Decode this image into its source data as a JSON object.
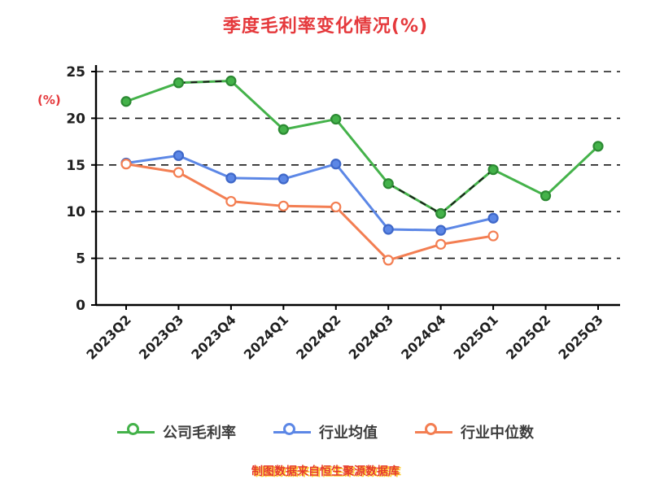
{
  "chart_data": {
    "type": "line",
    "title": "季度毛利率变化情况(%)",
    "ylabel": "(%)",
    "caption": "制图数据来自恒生聚源数据库",
    "ylim": [
      0,
      25
    ],
    "yticks": [
      0,
      5,
      10,
      15,
      20,
      25
    ],
    "grid": "horizontal-dashed",
    "legend_position": "bottom",
    "title_color": "#e5393c",
    "axis_color": "#000000",
    "categories": [
      "2023Q2",
      "2023Q3",
      "2023Q4",
      "2024Q1",
      "2024Q2",
      "2024Q3",
      "2024Q4",
      "2025Q1",
      "2025Q2",
      "2025Q3"
    ],
    "series": [
      {
        "name": "公司毛利率",
        "color": "#44b24a",
        "marker_fill": "#44b24a",
        "marker_edge": "#2c8a33",
        "values": [
          21.8,
          23.8,
          24.0,
          18.8,
          19.9,
          13.0,
          9.8,
          14.5,
          11.7,
          17.0
        ]
      },
      {
        "name": "行业均值",
        "color": "#5c87e6",
        "marker_fill": "#5c87e6",
        "marker_edge": "#3f68c9",
        "values": [
          15.2,
          16.0,
          13.6,
          13.5,
          15.1,
          8.1,
          8.0,
          9.3,
          null,
          null
        ]
      },
      {
        "name": "行业中位数",
        "color": "#f37e52",
        "marker_fill": "#ffffff",
        "marker_edge": "#f37e52",
        "values": [
          15.1,
          14.2,
          11.1,
          10.6,
          10.5,
          4.8,
          6.5,
          7.4,
          null,
          null
        ]
      }
    ],
    "dashed_overlay": {
      "series": "公司毛利率",
      "color": "#1b1b1b",
      "segments": [
        [
          1,
          2
        ],
        [
          5,
          7
        ]
      ]
    }
  }
}
